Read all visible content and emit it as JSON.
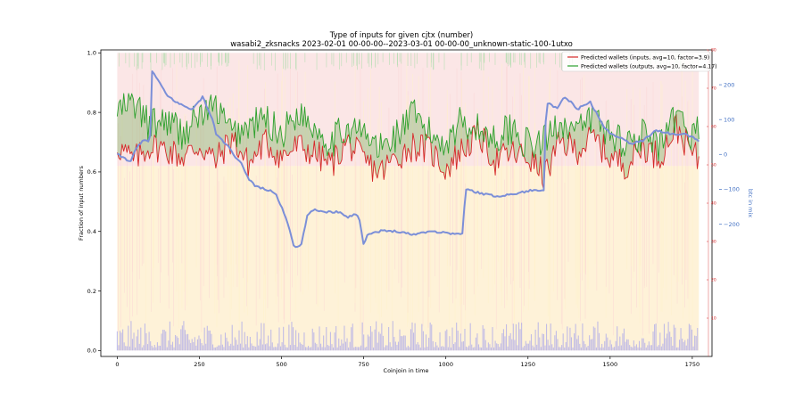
{
  "chart_data": {
    "type": "line",
    "title": "Type of inputs for given cjtx (number)",
    "subtitle": "wasabi2_zksnacks 2023-02-01 00-00-00--2023-03-01 00-00-00_unknown-static-100-1utxo",
    "xlabel": "Coinjoin in time",
    "ylabel": "Fraction of input numbers",
    "ylabel_right": "btc in mix",
    "xlim": [
      -50,
      1810
    ],
    "ylim": [
      -0.02,
      1.01
    ],
    "xticks": [
      0,
      250,
      500,
      750,
      1000,
      1250,
      1500,
      1750
    ],
    "yticks": [
      0.0,
      0.2,
      0.4,
      0.6,
      0.8,
      1.0
    ],
    "ytick_labels": [
      "0.0",
      "0.2",
      "0.4",
      "0.6",
      "0.8",
      "1.0"
    ],
    "y2lim": [
      -580,
      300
    ],
    "y2ticks": [
      -200,
      -100,
      0,
      100,
      200
    ],
    "y2tick_labels": [
      "−200",
      "−100",
      "0",
      "100",
      "200"
    ],
    "y3lim": [
      0,
      80
    ],
    "y3ticks": [
      10,
      20,
      30,
      40,
      50,
      60,
      70,
      80
    ],
    "y3tick_labels": [
      "10",
      "20",
      "30",
      "40",
      "50",
      "60",
      "70",
      "80"
    ],
    "grid": false,
    "legend_position": "top-right",
    "legend": [
      "Predicted wallets (inputs, avg=10, factor=3.9)",
      "Predicted wallets (outputs, avg=10, factor=4.17)"
    ],
    "colors": {
      "inputs_line": "#d62728",
      "outputs_line": "#2ca02c",
      "btc_line": "#7b8fd8",
      "fill_top": "#f4b6b6",
      "fill_mid": "#fde3a8",
      "fill_bottom": "#8f8ff0"
    },
    "series": [
      {
        "name": "Predicted wallets (inputs, avg=10, factor=3.9)",
        "axis": "right-red",
        "x": [
          0,
          50,
          100,
          150,
          200,
          250,
          300,
          350,
          400,
          450,
          500,
          550,
          600,
          650,
          700,
          750,
          800,
          850,
          900,
          950,
          1000,
          1050,
          1100,
          1150,
          1200,
          1250,
          1300,
          1350,
          1400,
          1450,
          1500,
          1550,
          1600,
          1650,
          1700,
          1750,
          1770
        ],
        "values": [
          55,
          51,
          55,
          54,
          52,
          55,
          51,
          57,
          50,
          56,
          52,
          55,
          53,
          50,
          56,
          51,
          48,
          52,
          55,
          54,
          49,
          54,
          58,
          51,
          53,
          52,
          47,
          56,
          54,
          57,
          52,
          50,
          55,
          52,
          60,
          53,
          51
        ]
      },
      {
        "name": "Predicted wallets (outputs, avg=10, factor=4.17)",
        "axis": "right-red",
        "x": [
          0,
          50,
          100,
          150,
          200,
          250,
          300,
          350,
          400,
          450,
          500,
          550,
          600,
          650,
          700,
          750,
          800,
          850,
          900,
          950,
          1000,
          1050,
          1100,
          1150,
          1200,
          1250,
          1300,
          1350,
          1400,
          1450,
          1500,
          1550,
          1600,
          1650,
          1700,
          1750,
          1770
        ],
        "values": [
          64,
          66,
          60,
          62,
          58,
          63,
          65,
          58,
          60,
          62,
          58,
          64,
          60,
          56,
          60,
          58,
          54,
          58,
          63,
          58,
          56,
          62,
          59,
          57,
          60,
          55,
          56,
          62,
          58,
          63,
          58,
          56,
          58,
          54,
          62,
          58,
          60
        ]
      },
      {
        "name": "btc in mix",
        "axis": "right-blue",
        "x": [
          0,
          20,
          40,
          60,
          80,
          100,
          105,
          120,
          150,
          180,
          200,
          230,
          260,
          290,
          300,
          320,
          340,
          360,
          380,
          400,
          420,
          450,
          480,
          500,
          520,
          540,
          560,
          580,
          600,
          640,
          680,
          700,
          730,
          740,
          750,
          760,
          800,
          850,
          900,
          950,
          1000,
          1050,
          1060,
          1100,
          1150,
          1200,
          1250,
          1300,
          1305,
          1340,
          1360,
          1380,
          1400,
          1440,
          1480,
          1500,
          1530,
          1560,
          1600,
          1640,
          1680,
          1700,
          1720,
          1750,
          1770
        ],
        "values": [
          0,
          -10,
          -20,
          20,
          40,
          40,
          240,
          220,
          170,
          150,
          140,
          130,
          165,
          100,
          60,
          40,
          20,
          -10,
          -30,
          -70,
          -90,
          -100,
          -110,
          -150,
          -200,
          -270,
          -260,
          -170,
          -160,
          -165,
          -165,
          -180,
          -170,
          -200,
          -260,
          -230,
          -220,
          -220,
          -230,
          -220,
          -225,
          -230,
          -100,
          -110,
          -120,
          -115,
          -105,
          -100,
          150,
          130,
          165,
          150,
          130,
          150,
          80,
          60,
          50,
          30,
          40,
          70,
          60,
          55,
          60,
          50,
          40
        ]
      }
    ]
  }
}
